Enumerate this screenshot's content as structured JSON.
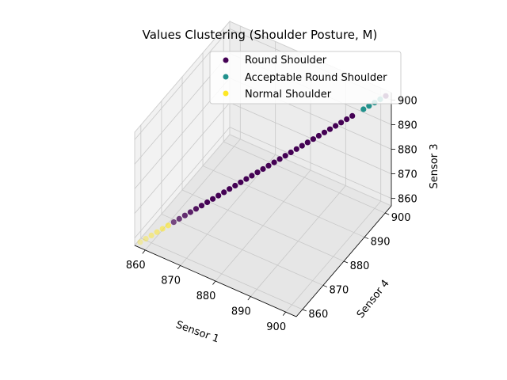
{
  "chart_data": {
    "type": "scatter",
    "projection": "3d",
    "title": "Values Clustering (Shoulder Posture, M)",
    "xlabel": "Sensor 1",
    "ylabel": "Sensor 4",
    "zlabel": "Sensor 3",
    "xlim": [
      857,
      903
    ],
    "ylim": [
      857,
      903
    ],
    "zlim": [
      857,
      903
    ],
    "xticks": [
      "860",
      "870",
      "880",
      "890",
      "900"
    ],
    "yticks": [
      "860",
      "870",
      "880",
      "890",
      "900"
    ],
    "zticks": [
      "860",
      "870",
      "880",
      "890",
      "900"
    ],
    "grid": true,
    "legend_position": "upper-right",
    "series": [
      {
        "name": "Round Shoulder",
        "color": "#440154",
        "x": [
          864,
          865,
          866,
          867,
          868,
          869,
          870,
          871,
          872,
          873,
          874,
          875,
          876,
          877,
          878,
          879,
          880,
          881,
          882,
          883,
          884,
          885,
          886,
          887,
          888,
          889,
          890,
          891,
          892,
          893,
          894,
          895,
          896,
          902
        ],
        "y": [
          864,
          865,
          866,
          867,
          868,
          869,
          870,
          871,
          872,
          873,
          874,
          875,
          876,
          877,
          878,
          879,
          880,
          881,
          882,
          883,
          884,
          885,
          886,
          887,
          888,
          889,
          890,
          891,
          892,
          893,
          894,
          895,
          896,
          902
        ],
        "z": [
          864,
          865,
          866,
          867,
          868,
          869,
          870,
          871,
          872,
          873,
          874,
          875,
          876,
          877,
          878,
          879,
          880,
          881,
          882,
          883,
          884,
          885,
          886,
          887,
          888,
          889,
          890,
          891,
          892,
          893,
          894,
          895,
          896,
          902
        ]
      },
      {
        "name": "Acceptable Round Shoulder",
        "color": "#21918c",
        "x": [
          898,
          899,
          900,
          901
        ],
        "y": [
          898,
          899,
          900,
          901
        ],
        "z": [
          898,
          899,
          900,
          901
        ]
      },
      {
        "name": "Normal Shoulder",
        "color": "#fde725",
        "x": [
          858,
          859,
          860,
          861,
          862,
          863
        ],
        "y": [
          858,
          859,
          860,
          861,
          862,
          863
        ],
        "z": [
          858,
          859,
          860,
          861,
          862,
          863
        ]
      }
    ]
  }
}
